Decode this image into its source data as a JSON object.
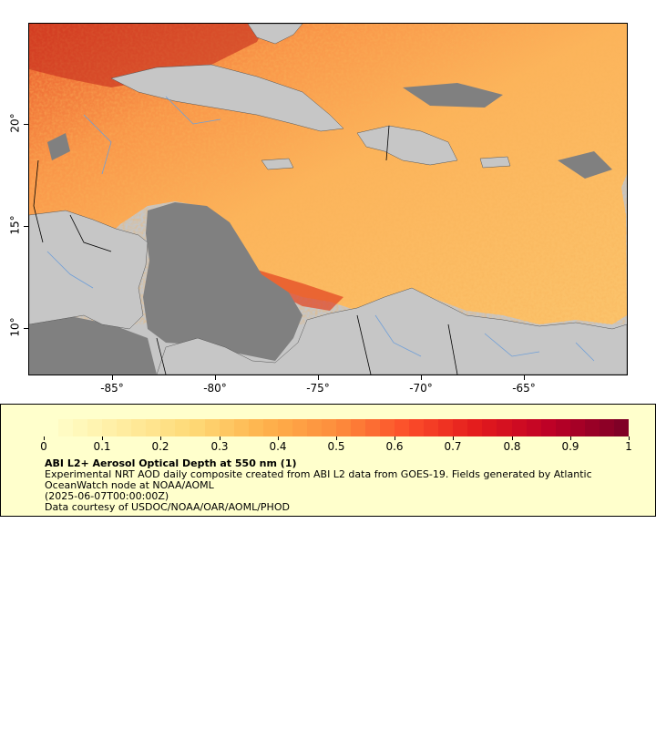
{
  "map": {
    "lat_labels": [
      "20°",
      "15°",
      "10°"
    ],
    "lon_labels": [
      "-85°",
      "-80°",
      "-75°",
      "-70°",
      "-65°"
    ],
    "colors": {
      "land": "#c6c6c6",
      "nodata_ocean": "#808080",
      "rivers": "#6f9fd8",
      "borders": "#000000"
    }
  },
  "legend": {
    "title": "ABI L2+ Aerosol Optical Depth at 550 nm (1)",
    "line1": "Experimental NRT AOD daily composite created from ABI L2 data from GOES-19. Fields generated by Atlantic",
    "line2": "OceanWatch node at NOAA/AOML",
    "line3": "(2025-06-07T00:00:00Z)",
    "line4": "Data courtesy of USDOC/NOAA/OAR/AOML/PHOD",
    "scale_labels": [
      "0",
      "0.1",
      "0.2",
      "0.3",
      "0.4",
      "0.5",
      "0.6",
      "0.7",
      "0.8",
      "0.9",
      "1"
    ],
    "scale_range": [
      0,
      1
    ],
    "palette": [
      "#ffffcc",
      "#ffeda0",
      "#fed976",
      "#feb24c",
      "#fd8d3c",
      "#fc4e2a",
      "#e31a1c",
      "#bd0026",
      "#800026"
    ]
  }
}
